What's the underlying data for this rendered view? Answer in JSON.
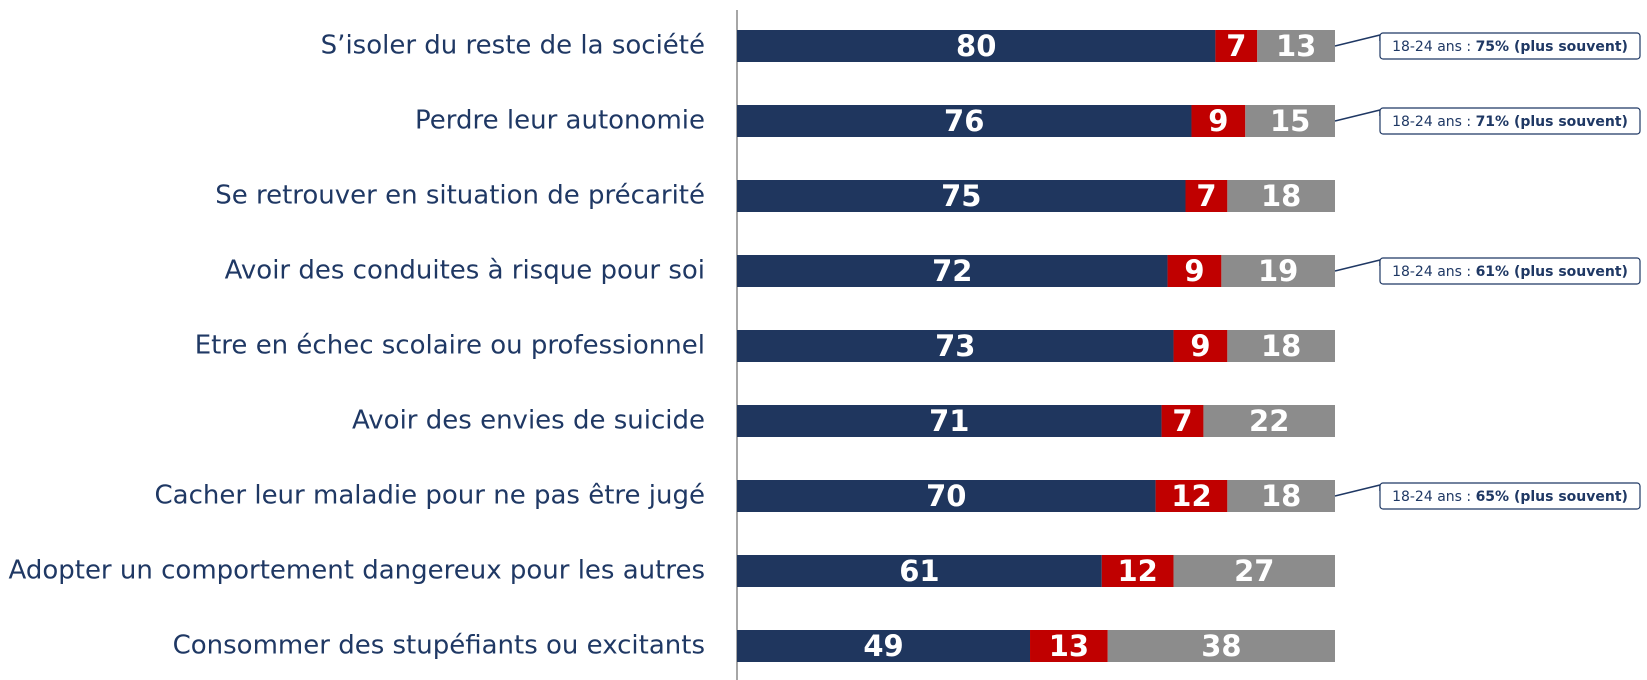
{
  "chart_data": {
    "type": "stacked-bar-horizontal",
    "categories": [
      "S’isoler du reste de la société",
      "Perdre leur autonomie",
      "Se retrouver en situation de précarité",
      "Avoir des conduites à risque pour soi",
      "Etre en échec scolaire ou professionnel",
      "Avoir des envies de suicide",
      "Cacher leur maladie pour ne pas être jugé",
      "Adopter un comportement dangereux pour les autres",
      "Consommer des stupéfiants ou excitants"
    ],
    "series": [
      {
        "color": "#1f365e",
        "values": [
          80,
          76,
          75,
          72,
          73,
          71,
          70,
          61,
          49
        ]
      },
      {
        "color": "#c00000",
        "values": [
          7,
          9,
          7,
          9,
          9,
          7,
          12,
          12,
          13
        ]
      },
      {
        "color": "#8c8c8c",
        "values": [
          13,
          15,
          18,
          19,
          18,
          22,
          18,
          27,
          38
        ]
      }
    ],
    "xlim": [
      0,
      100
    ],
    "annotations": [
      {
        "prefix": "18-24 ans : ",
        "emphasis": "75% (plus souvent)"
      },
      {
        "prefix": "18-24 ans : ",
        "emphasis": "71% (plus souvent)"
      },
      null,
      {
        "prefix": "18-24 ans : ",
        "emphasis": "61% (plus souvent)"
      },
      null,
      null,
      {
        "prefix": "18-24 ans : ",
        "emphasis": "65% (plus souvent)"
      },
      null,
      null
    ]
  }
}
